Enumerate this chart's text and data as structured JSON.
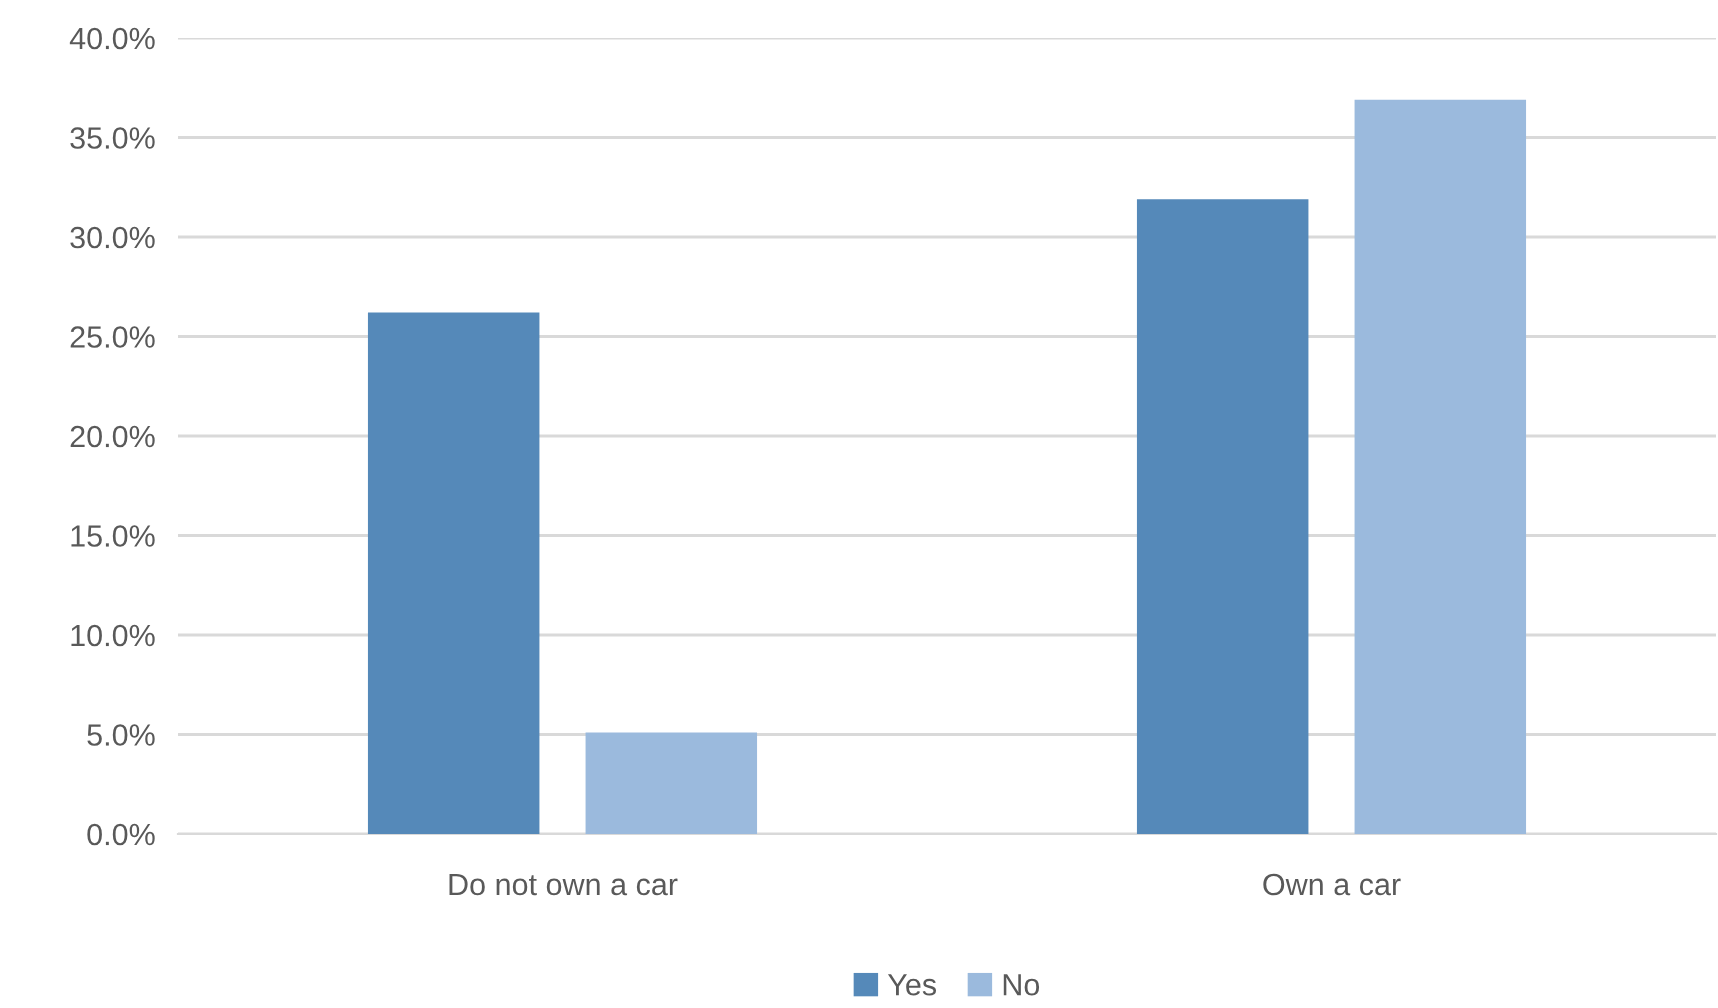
{
  "chart_data": {
    "type": "bar",
    "categories": [
      "Do not own a car",
      "Own a car"
    ],
    "series": [
      {
        "name": "Yes",
        "color": "#5589b9",
        "values": [
          26.2,
          31.9
        ]
      },
      {
        "name": "No",
        "color": "#9bbadd",
        "values": [
          5.1,
          36.9
        ]
      }
    ],
    "ylim": [
      0,
      40
    ],
    "yticks": [
      {
        "value": 0,
        "label": "0.0%"
      },
      {
        "value": 5,
        "label": "5.0%"
      },
      {
        "value": 10,
        "label": "10.0%"
      },
      {
        "value": 15,
        "label": "15.0%"
      },
      {
        "value": 20,
        "label": "20.0%"
      },
      {
        "value": 25,
        "label": "25.0%"
      },
      {
        "value": 30,
        "label": "30.0%"
      },
      {
        "value": 35,
        "label": "35.0%"
      },
      {
        "value": 40,
        "label": "40.0%"
      }
    ],
    "grid": "y",
    "legend": "bottom"
  }
}
